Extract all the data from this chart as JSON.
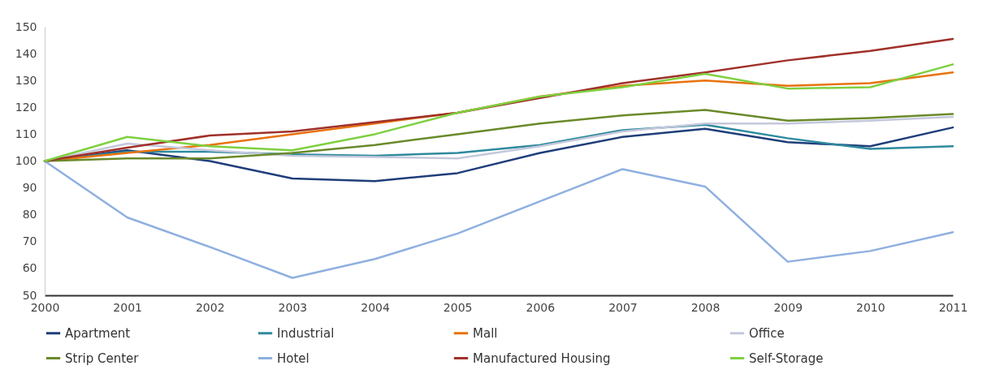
{
  "chart_data": {
    "type": "line",
    "x": [
      2000,
      2001,
      2002,
      2003,
      2004,
      2005,
      2006,
      2007,
      2008,
      2009,
      2010,
      2011
    ],
    "xlim": [
      2000,
      2011
    ],
    "xticks": [
      2000,
      2001,
      2002,
      2003,
      2004,
      2005,
      2006,
      2007,
      2008,
      2009,
      2010,
      2011
    ],
    "ylim": [
      50,
      150
    ],
    "yticks": [
      50,
      60,
      70,
      80,
      90,
      100,
      110,
      120,
      130,
      140,
      150
    ],
    "grid": false,
    "legend": "bottom",
    "marker": "none",
    "line_style": "solid",
    "series": [
      {
        "name": "Apartment",
        "color": "#1f3e7a",
        "values": [
          100,
          104,
          100,
          93.5,
          92.5,
          95.5,
          103,
          109,
          112,
          107,
          105.5,
          112.5
        ]
      },
      {
        "name": "Industrial",
        "color": "#2e8a9e",
        "values": [
          100,
          103.5,
          103.5,
          102.5,
          102,
          103,
          106,
          111.5,
          113.5,
          108.5,
          104.5,
          105.5
        ]
      },
      {
        "name": "Mall",
        "color": "#e8720c",
        "values": [
          100,
          103,
          106,
          110,
          114,
          118,
          124,
          128,
          130,
          128,
          129,
          133
        ]
      },
      {
        "name": "Office",
        "color": "#c4c8dc",
        "values": [
          100,
          106.5,
          104,
          102,
          101.5,
          101,
          105.5,
          111,
          114,
          114,
          115,
          116.5
        ]
      },
      {
        "name": "Strip Center",
        "color": "#6a8a2a",
        "values": [
          100,
          101,
          101,
          103,
          106,
          110,
          114,
          117,
          119,
          115,
          116,
          117.5
        ]
      },
      {
        "name": "Hotel",
        "color": "#8fb0e0",
        "values": [
          100,
          79,
          68,
          56.5,
          63.5,
          73,
          85,
          97,
          90.5,
          62.5,
          66.5,
          73.5
        ]
      },
      {
        "name": "Manufactured Housing",
        "color": "#a0302a",
        "values": [
          100,
          105,
          109.5,
          111,
          114.5,
          118,
          123.5,
          129,
          133,
          137.5,
          141,
          145.5
        ]
      },
      {
        "name": "Self-Storage",
        "color": "#7ed040",
        "values": [
          100,
          109,
          105.5,
          104,
          110,
          118,
          124,
          127.5,
          132.5,
          127,
          127.5,
          136
        ]
      }
    ]
  }
}
